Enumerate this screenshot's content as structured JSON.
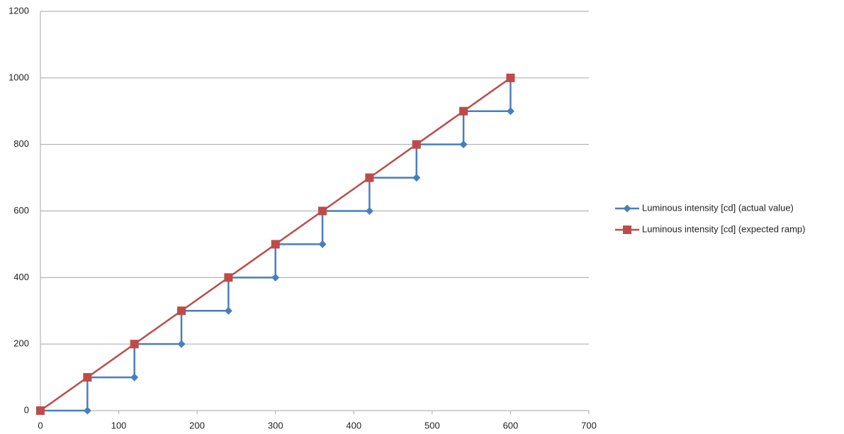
{
  "chart_data": {
    "type": "line",
    "xlim": [
      0,
      700
    ],
    "xticks": [
      0,
      100,
      200,
      300,
      400,
      500,
      600,
      700
    ],
    "ylim": [
      0,
      1200
    ],
    "yticks": [
      0,
      200,
      400,
      600,
      800,
      1000,
      1200
    ],
    "grid": true,
    "legend": "right",
    "series": [
      {
        "name": "Luminous intensity [cd] (actual value)",
        "color": "#4a7ebb",
        "marker": "diamond",
        "x": [
          0,
          60,
          60,
          120,
          120,
          180,
          180,
          240,
          240,
          300,
          300,
          360,
          360,
          420,
          420,
          480,
          480,
          540,
          540,
          600,
          600
        ],
        "values": [
          0,
          0,
          100,
          100,
          200,
          200,
          300,
          300,
          400,
          400,
          500,
          500,
          600,
          600,
          700,
          700,
          800,
          800,
          900,
          900,
          1000
        ]
      },
      {
        "name": "Luminous intensity [cd] (expected ramp)",
        "color": "#be4b48",
        "marker": "square",
        "x": [
          0,
          60,
          120,
          180,
          240,
          300,
          360,
          420,
          480,
          540,
          600
        ],
        "values": [
          0,
          100,
          200,
          300,
          400,
          500,
          600,
          700,
          800,
          900,
          1000
        ]
      }
    ]
  }
}
